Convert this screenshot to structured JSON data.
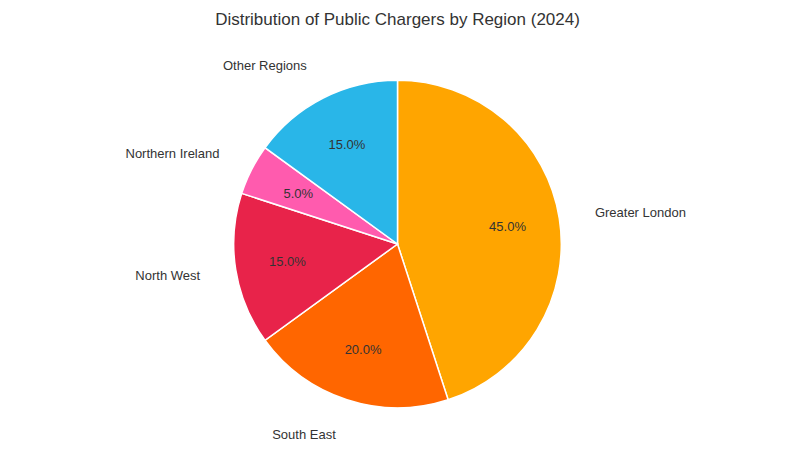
{
  "chart_data": {
    "type": "pie",
    "title": "Distribution of Public Chargers by Region (2024)",
    "categories": [
      "Greater London",
      "South East",
      "North West",
      "Northern Ireland",
      "Other Regions"
    ],
    "values": [
      45.0,
      20.0,
      15.0,
      5.0,
      15.0
    ],
    "value_labels": [
      "45.0%",
      "20.0%",
      "15.0%",
      "5.0%",
      "15.0%"
    ],
    "colors": [
      "#FFA500",
      "#FF6600",
      "#E8234A",
      "#FF5BAE",
      "#29B6E8"
    ],
    "data_labels": true
  }
}
